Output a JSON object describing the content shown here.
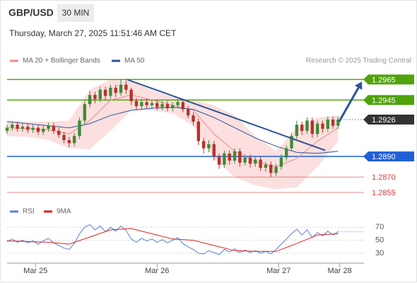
{
  "header": {
    "symbol": "GBP/USD",
    "timeframe": "30 MIN",
    "datetime": "Thursday, March 27, 2025 11:51:46 AM CET",
    "credit": "Research © 2025 Trading Central"
  },
  "chart_data": [
    {
      "type": "candlestick",
      "xlim": [
        0,
        69
      ],
      "ylim": [
        1.2846,
        1.2977
      ],
      "up_color": "#3d8b37",
      "down_color": "#b8322a",
      "open": [
        1.2915,
        1.2918,
        1.2921,
        1.2917,
        1.2919,
        1.2916,
        1.2918,
        1.2914,
        1.2917,
        1.292,
        1.2915,
        1.2911,
        1.2906,
        1.2903,
        1.291,
        1.2925,
        1.2941,
        1.295,
        1.2946,
        1.2955,
        1.2949,
        1.2957,
        1.2952,
        1.296,
        1.2955,
        1.2944,
        1.2939,
        1.2943,
        1.294,
        1.2942,
        1.2938,
        1.2941,
        1.2937,
        1.294,
        1.2943,
        1.2936,
        1.293,
        1.2924,
        1.2905,
        1.2898,
        1.2902,
        1.289,
        1.2882,
        1.2893,
        1.2886,
        1.2895,
        1.2884,
        1.2889,
        1.2883,
        1.2887,
        1.2879,
        1.2882,
        1.2874,
        1.288,
        1.2889,
        1.2898,
        1.291,
        1.2921,
        1.2915,
        1.2925,
        1.2912,
        1.2922,
        1.2917,
        1.2926,
        1.292
      ],
      "high": [
        1.2921,
        1.2924,
        1.2924,
        1.2922,
        1.2922,
        1.2921,
        1.2921,
        1.292,
        1.2923,
        1.2923,
        1.2918,
        1.2914,
        1.2909,
        1.2913,
        1.2928,
        1.2944,
        1.2954,
        1.2953,
        1.2958,
        1.2958,
        1.296,
        1.296,
        1.2965,
        1.2964,
        1.2957,
        1.2947,
        1.2946,
        1.2946,
        1.2945,
        1.2945,
        1.2944,
        1.2944,
        1.2943,
        1.2946,
        1.2946,
        1.2939,
        1.2933,
        1.2927,
        1.2908,
        1.2906,
        1.2905,
        1.2893,
        1.2896,
        1.2896,
        1.2898,
        1.2898,
        1.2892,
        1.2892,
        1.289,
        1.289,
        1.2885,
        1.2885,
        1.2883,
        1.2892,
        1.2901,
        1.2913,
        1.2925,
        1.2924,
        1.2928,
        1.2928,
        1.2925,
        1.2925,
        1.2929,
        1.2929,
        1.2929
      ],
      "low": [
        1.2912,
        1.2915,
        1.2914,
        1.2914,
        1.2913,
        1.2913,
        1.2911,
        1.2911,
        1.2914,
        1.2912,
        1.2908,
        1.2903,
        1.2899,
        1.29,
        1.2907,
        1.2922,
        1.2938,
        1.2942,
        1.2943,
        1.2945,
        1.2946,
        1.2948,
        1.2949,
        1.2951,
        1.294,
        1.2935,
        1.2936,
        1.2937,
        1.2937,
        1.2935,
        1.2935,
        1.2934,
        1.2934,
        1.2937,
        1.2933,
        1.2927,
        1.292,
        1.2901,
        1.2893,
        1.2894,
        1.2886,
        1.2878,
        1.2879,
        1.2882,
        1.2883,
        1.288,
        1.2881,
        1.2879,
        1.288,
        1.2876,
        1.2875,
        1.287,
        1.2871,
        1.2877,
        1.2886,
        1.2895,
        1.2907,
        1.2911,
        1.2912,
        1.2908,
        1.2909,
        1.2913,
        1.2914,
        1.2917,
        1.2917
      ],
      "close": [
        1.2918,
        1.2921,
        1.2917,
        1.2919,
        1.2916,
        1.2918,
        1.2914,
        1.2917,
        1.292,
        1.2915,
        1.2911,
        1.2906,
        1.2903,
        1.291,
        1.2925,
        1.2941,
        1.295,
        1.2946,
        1.2955,
        1.2949,
        1.2957,
        1.2952,
        1.296,
        1.2955,
        1.2944,
        1.2939,
        1.2943,
        1.294,
        1.2942,
        1.2938,
        1.2941,
        1.2937,
        1.294,
        1.2943,
        1.2936,
        1.293,
        1.2924,
        1.2905,
        1.2898,
        1.2902,
        1.289,
        1.2882,
        1.2893,
        1.2886,
        1.2895,
        1.2884,
        1.2889,
        1.2883,
        1.2887,
        1.2879,
        1.2882,
        1.2874,
        1.288,
        1.2889,
        1.2898,
        1.291,
        1.2921,
        1.2915,
        1.2925,
        1.2912,
        1.2922,
        1.2917,
        1.2926,
        1.292,
        1.2926
      ],
      "overlay_x": [
        0,
        4,
        8,
        12,
        16,
        20,
        24,
        28,
        32,
        36,
        40,
        44,
        48,
        52,
        56,
        60,
        64
      ],
      "series": [
        {
          "name": "MA 20 + Bollinger Bands",
          "color": "#f08a8a",
          "band_color": "#fcd9d9",
          "values": [
            1.2918,
            1.2917,
            1.2916,
            1.2912,
            1.2925,
            1.2945,
            1.295,
            1.2945,
            1.294,
            1.2935,
            1.2912,
            1.2895,
            1.2885,
            1.288,
            1.2888,
            1.2905,
            1.2918
          ],
          "upper": [
            1.2925,
            1.2924,
            1.2924,
            1.2925,
            1.2955,
            1.2965,
            1.2963,
            1.2955,
            1.2948,
            1.2945,
            1.294,
            1.293,
            1.291,
            1.2895,
            1.2918,
            1.2928,
            1.293
          ],
          "lower": [
            1.291,
            1.2909,
            1.2906,
            1.2898,
            1.2897,
            1.2915,
            1.2935,
            1.2935,
            1.2932,
            1.292,
            1.2888,
            1.287,
            1.2862,
            1.2858,
            1.286,
            1.288,
            1.2905
          ]
        },
        {
          "name": "MA 50",
          "color": "#2e5597",
          "values": [
            1.2924,
            1.2922,
            1.292,
            1.2918,
            1.2922,
            1.293,
            1.2935,
            1.2937,
            1.2938,
            1.2936,
            1.2928,
            1.2918,
            1.2908,
            1.29,
            1.2894,
            1.2893,
            1.2895
          ]
        }
      ],
      "levels": [
        {
          "value": 1.2965,
          "color": "#4fa30c",
          "style": "box",
          "line": "solid"
        },
        {
          "value": 1.2945,
          "color": "#4fa30c",
          "style": "box",
          "line": "solid"
        },
        {
          "value": 1.2926,
          "color": "#333333",
          "style": "box",
          "line": "dotted"
        },
        {
          "value": 1.289,
          "label": "1.2890",
          "color": "#1f5fd6",
          "style": "box",
          "line": "solid"
        },
        {
          "value": 1.287,
          "label": "1.2870",
          "color": "#e03a3a",
          "style": "text",
          "line": "solid"
        },
        {
          "value": 1.2855,
          "color": "#e03a3a",
          "style": "text",
          "line": "solid"
        }
      ],
      "trendline": {
        "color": "#2e5597",
        "x": [
          23.2,
          61.5
        ],
        "y": [
          1.2965,
          1.2896
        ]
      },
      "arrow": {
        "color": "#2e5597",
        "x": [
          64.2,
          68.6
        ],
        "y": [
          1.2924,
          1.2963
        ]
      }
    },
    {
      "type": "line",
      "xlim": [
        0,
        69
      ],
      "ylim": [
        17,
        93
      ],
      "yticks": [
        70,
        50,
        30
      ],
      "grid": true,
      "xticks": [
        {
          "value": 5.5,
          "label": "Mar 25"
        },
        {
          "value": 29,
          "label": "Mar 26"
        },
        {
          "value": 52.5,
          "label": "Mar 27"
        },
        {
          "value": 64.3,
          "label": "Mar 28"
        }
      ],
      "series": [
        {
          "name": "RSI",
          "color": "#5b7fd6",
          "values": [
            48,
            52,
            47,
            50,
            46,
            49,
            44,
            49,
            53,
            46,
            42,
            38,
            36,
            45,
            60,
            70,
            74,
            66,
            72,
            63,
            70,
            64,
            72,
            65,
            52,
            47,
            53,
            49,
            52,
            47,
            51,
            46,
            50,
            54,
            45,
            40,
            36,
            30,
            29,
            34,
            31,
            28,
            36,
            32,
            37,
            31,
            35,
            31,
            34,
            30,
            33,
            29,
            36,
            44,
            52,
            60,
            67,
            58,
            66,
            54,
            62,
            57,
            64,
            58,
            63
          ]
        },
        {
          "name": "9MA",
          "color": "#e02020",
          "x": [
            0,
            4,
            8,
            12,
            16,
            20,
            24,
            28,
            32,
            36,
            40,
            44,
            48,
            52,
            56,
            60,
            64
          ],
          "values": [
            49,
            48,
            47,
            44,
            55,
            66,
            68,
            60,
            52,
            50,
            42,
            34,
            33,
            33,
            45,
            58,
            60
          ]
        }
      ]
    }
  ]
}
